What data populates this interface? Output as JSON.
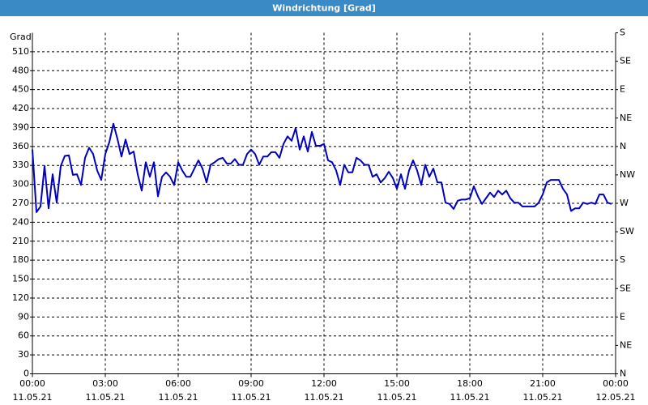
{
  "chart_data": {
    "type": "line",
    "title": "Windrichtung [Grad]",
    "ylabel": "Grad",
    "xlim": [
      0,
      1440
    ],
    "xticks": [
      {
        "value": 0,
        "label": "00:00",
        "date": "11.05.21"
      },
      {
        "value": 180,
        "label": "03:00",
        "date": "11.05.21"
      },
      {
        "value": 360,
        "label": "06:00",
        "date": "11.05.21"
      },
      {
        "value": 540,
        "label": "09:00",
        "date": "11.05.21"
      },
      {
        "value": 720,
        "label": "12:00",
        "date": "11.05.21"
      },
      {
        "value": 900,
        "label": "15:00",
        "date": "11.05.21"
      },
      {
        "value": 1080,
        "label": "18:00",
        "date": "11.05.21"
      },
      {
        "value": 1260,
        "label": "21:00",
        "date": "11.05.21"
      },
      {
        "value": 1440,
        "label": "00:00",
        "date": "12.05.21"
      }
    ],
    "ylim": [
      0,
      540
    ],
    "yticks": [
      0,
      30,
      60,
      90,
      120,
      150,
      180,
      210,
      240,
      270,
      300,
      330,
      360,
      390,
      420,
      450,
      480,
      510
    ],
    "y2lim": [
      0,
      540
    ],
    "y2ticks": [
      {
        "value": 0,
        "label": "N"
      },
      {
        "value": 45,
        "label": "NE"
      },
      {
        "value": 90,
        "label": "E"
      },
      {
        "value": 135,
        "label": "SE"
      },
      {
        "value": 180,
        "label": "S"
      },
      {
        "value": 225,
        "label": "SW"
      },
      {
        "value": 270,
        "label": "W"
      },
      {
        "value": 315,
        "label": "NW"
      },
      {
        "value": 360,
        "label": "N"
      },
      {
        "value": 405,
        "label": "NE"
      },
      {
        "value": 450,
        "label": "E"
      },
      {
        "value": 495,
        "label": "SE"
      },
      {
        "value": 540,
        "label": "S"
      }
    ],
    "grid": true,
    "x": [
      0,
      10,
      20,
      30,
      40,
      50,
      60,
      70,
      80,
      90,
      100,
      110,
      120,
      130,
      140,
      150,
      160,
      170,
      180,
      190,
      200,
      210,
      220,
      230,
      240,
      250,
      260,
      270,
      280,
      290,
      300,
      310,
      320,
      330,
      340,
      350,
      360,
      370,
      380,
      390,
      400,
      410,
      420,
      430,
      440,
      450,
      460,
      470,
      480,
      490,
      500,
      510,
      520,
      530,
      540,
      550,
      560,
      570,
      580,
      590,
      600,
      610,
      620,
      630,
      640,
      650,
      660,
      670,
      680,
      690,
      700,
      710,
      720,
      730,
      740,
      750,
      760,
      770,
      780,
      790,
      800,
      810,
      820,
      830,
      840,
      850,
      860,
      870,
      880,
      890,
      900,
      910,
      920,
      930,
      940,
      950,
      960,
      970,
      980,
      990,
      1000,
      1010,
      1020,
      1030,
      1040,
      1050,
      1060,
      1070,
      1080,
      1090,
      1100,
      1110,
      1120,
      1130,
      1140,
      1150,
      1160,
      1170,
      1180,
      1190,
      1200,
      1210,
      1220,
      1230,
      1240,
      1250,
      1260,
      1270,
      1280,
      1290,
      1300,
      1310,
      1320,
      1330,
      1340,
      1350,
      1360,
      1370,
      1380,
      1390,
      1400,
      1410,
      1420,
      1430
    ],
    "series": [
      {
        "color": "#0000c0",
        "values": [
          355,
          256,
          265,
          329,
          262,
          316,
          271,
          329,
          345,
          346,
          315,
          316,
          299,
          342,
          358,
          348,
          322,
          307,
          348,
          367,
          396,
          372,
          344,
          371,
          348,
          352,
          316,
          290,
          335,
          312,
          335,
          281,
          312,
          319,
          312,
          299,
          335,
          322,
          312,
          312,
          325,
          338,
          325,
          303,
          331,
          335,
          340,
          342,
          333,
          333,
          340,
          331,
          331,
          348,
          355,
          348,
          331,
          344,
          344,
          351,
          351,
          342,
          364,
          376,
          369,
          389,
          355,
          376,
          352,
          383,
          361,
          361,
          364,
          338,
          335,
          322,
          299,
          331,
          319,
          319,
          342,
          338,
          331,
          331,
          312,
          316,
          303,
          310,
          320,
          310,
          293,
          316,
          293,
          322,
          338,
          322,
          299,
          331,
          312,
          325,
          303,
          303,
          271,
          269,
          261,
          274,
          276,
          276,
          278,
          297,
          281,
          269,
          278,
          287,
          280,
          290,
          284,
          290,
          278,
          271,
          271,
          265,
          265,
          265,
          265,
          271,
          284,
          303,
          307,
          307,
          307,
          293,
          284,
          258,
          262,
          262,
          271,
          269,
          271,
          269,
          284,
          284,
          271,
          269
        ]
      }
    ]
  }
}
